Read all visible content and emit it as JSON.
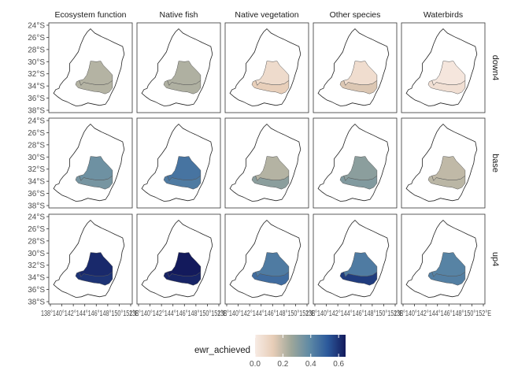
{
  "chart_data": {
    "type": "choropleth_facet",
    "facet_columns": [
      "Ecosystem function",
      "Native fish",
      "Native vegetation",
      "Other species",
      "Waterbirds"
    ],
    "facet_rows": [
      "down4",
      "base",
      "up4"
    ],
    "y_ticks": [
      "24°S",
      "26°S",
      "28°S",
      "30°S",
      "32°S",
      "34°S",
      "36°S",
      "38°S"
    ],
    "x_tick_label_text": "138°140°142°144°146°148°150°152°E",
    "x_tick_label_text_last": "138°140°142°144°146°148°150°152°E",
    "legend": {
      "title": "ewr_achieved",
      "ticks": [
        "0.0",
        "0.2",
        "0.4",
        "0.6"
      ],
      "range": [
        0,
        0.65
      ],
      "colors": [
        "#f7ebe4",
        "#e7cdb7",
        "#9ea79a",
        "#5f8aa5",
        "#2c5a9c",
        "#131a5c"
      ]
    },
    "values": {
      "down4": {
        "Ecosystem function": {
          "north": 0.22,
          "south": 0.22
        },
        "Native fish": {
          "north": 0.23,
          "south": 0.23
        },
        "Native vegetation": {
          "north": 0.07,
          "south": 0.12
        },
        "Other species": {
          "north": 0.06,
          "south": 0.15
        },
        "Waterbirds": {
          "north": 0.02,
          "south": 0.05
        }
      },
      "base": {
        "Ecosystem function": {
          "north": 0.36,
          "south": 0.34
        },
        "Native fish": {
          "north": 0.45,
          "south": 0.43
        },
        "Native vegetation": {
          "north": 0.22,
          "south": 0.3
        },
        "Other species": {
          "north": 0.3,
          "south": 0.32
        },
        "Waterbirds": {
          "north": 0.2,
          "south": 0.21
        }
      },
      "up4": {
        "Ecosystem function": {
          "north": 0.62,
          "south": 0.6
        },
        "Native fish": {
          "north": 0.65,
          "south": 0.63
        },
        "Native vegetation": {
          "north": 0.43,
          "south": 0.47
        },
        "Other species": {
          "north": 0.43,
          "south": 0.58
        },
        "Waterbirds": {
          "north": 0.41,
          "south": 0.42
        }
      }
    }
  }
}
